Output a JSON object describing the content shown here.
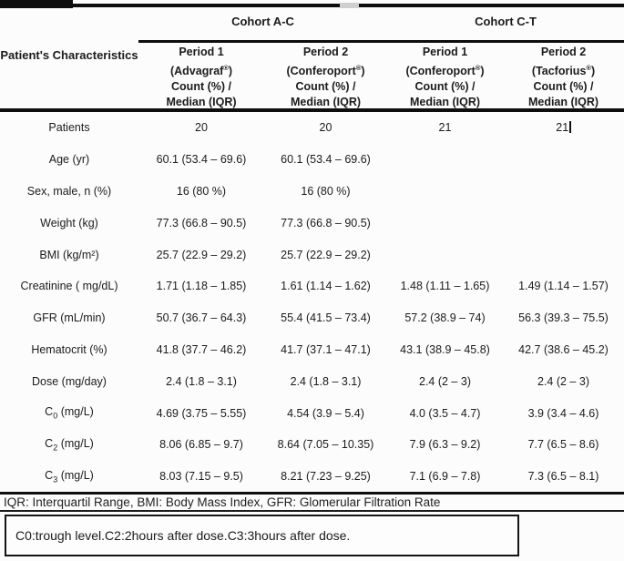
{
  "colors": {
    "ink": "#1b1b1b",
    "line": "#0d0d0d",
    "paper": "#fcfcfc",
    "scan_gap": "#cfcfcf"
  },
  "header": {
    "row_label_title": "Patient's Characteristics",
    "cohorts": [
      {
        "label": "Cohort A-C"
      },
      {
        "label": "Cohort C-T"
      }
    ],
    "columns": [
      {
        "period": "Period 1",
        "drug_open": "(",
        "drug": "Advagraf",
        "reg": "®",
        "drug_close": ")",
        "line3": "Count (%) /",
        "line4": "Median (IQR)"
      },
      {
        "period": "Period 2",
        "drug_open": "(",
        "drug": "Conferoport",
        "reg": "®",
        "drug_close": ")",
        "line3": "Count (%) /",
        "line4": "Median (IQR)"
      },
      {
        "period": "Period 1",
        "drug_open": "(",
        "drug": "Conferoport",
        "reg": "®",
        "drug_close": ")",
        "line3": "Count (%) /",
        "line4": "Median (IQR)"
      },
      {
        "period": "Period 2",
        "drug_open": "(",
        "drug": "Tacforius",
        "reg": "®",
        "drug_close": ")",
        "line3": "Count (%) /",
        "line4": "Median (IQR)"
      }
    ]
  },
  "rows": [
    {
      "label": "Patients",
      "sub": "",
      "label_post": "",
      "values": [
        "20",
        "20",
        "21",
        "21"
      ]
    },
    {
      "label": "Age (yr)",
      "sub": "",
      "label_post": "",
      "values": [
        "60.1 (53.4 – 69.6)",
        "60.1 (53.4 – 69.6)",
        "",
        ""
      ]
    },
    {
      "label": "Sex, male, n (%)",
      "sub": "",
      "label_post": "",
      "values": [
        "16 (80 %)",
        "16 (80 %)",
        "",
        ""
      ]
    },
    {
      "label": "Weight (kg)",
      "sub": "",
      "label_post": "",
      "values": [
        "77.3 (66.8 – 90.5)",
        "77.3 (66.8 – 90.5)",
        "",
        ""
      ]
    },
    {
      "label": "BMI (kg/m²)",
      "sub": "",
      "label_post": "",
      "values": [
        "25.7 (22.9 – 29.2)",
        "25.7 (22.9 – 29.2)",
        "",
        ""
      ]
    },
    {
      "label": "Creatinine ( mg/dL)",
      "sub": "",
      "label_post": "",
      "values": [
        "1.71 (1.18 – 1.85)",
        "1.61 (1.14 – 1.62)",
        "1.48 (1.11 – 1.65)",
        "1.49 (1.14 – 1.57)"
      ]
    },
    {
      "label": "GFR (mL/min)",
      "sub": "",
      "label_post": "",
      "values": [
        "50.7 (36.7 – 64.3)",
        "55.4 (41.5 – 73.4)",
        "57.2 (38.9 – 74)",
        "56.3 (39.3 – 75.5)"
      ]
    },
    {
      "label": "Hematocrit (%)",
      "sub": "",
      "label_post": "",
      "values": [
        "41.8 (37.7 – 46.2)",
        "41.7 (37.1 – 47.1)",
        "43.1 (38.9 – 45.8)",
        "42.7 (38.6 – 45.2)"
      ]
    },
    {
      "label": "Dose (mg/day)",
      "sub": "",
      "label_post": "",
      "values": [
        "2.4 (1.8 – 3.1)",
        "2.4 (1.8 – 3.1)",
        "2.4 (2 – 3)",
        "2.4 (2 – 3)"
      ]
    },
    {
      "label": "C",
      "sub": "0",
      "label_post": " (mg/L)",
      "values": [
        "4.69 (3.75 – 5.55)",
        "4.54 (3.9 – 5.4)",
        "4.0 (3.5 – 4.7)",
        "3.9 (3.4 – 4.6)"
      ]
    },
    {
      "label": "C",
      "sub": "2",
      "label_post": " (mg/L)",
      "values": [
        "8.06 (6.85 – 9.7)",
        "8.64 (7.05 – 10.35)",
        "7.9 (6.3 – 9.2)",
        "7.7 (6.5 – 8.6)"
      ]
    },
    {
      "label": "C",
      "sub": "3",
      "label_post": " (mg/L)",
      "values": [
        "8.03 (7.15 – 9.5)",
        "8.21 (7.23 – 9.25)",
        "7.1 (6.9 – 7.8)",
        "7.3 (6.5 – 8.1)"
      ]
    }
  ],
  "cursor": {
    "row": 0,
    "value_index": 3
  },
  "footer": {
    "abbreviations": "IQR: Interquartil Range, BMI: Body Mass Index, GFR: Glomerular Filtration Rate",
    "note_box": "C0:trough level.C2:2hours after dose.C3:3hours after dose."
  }
}
